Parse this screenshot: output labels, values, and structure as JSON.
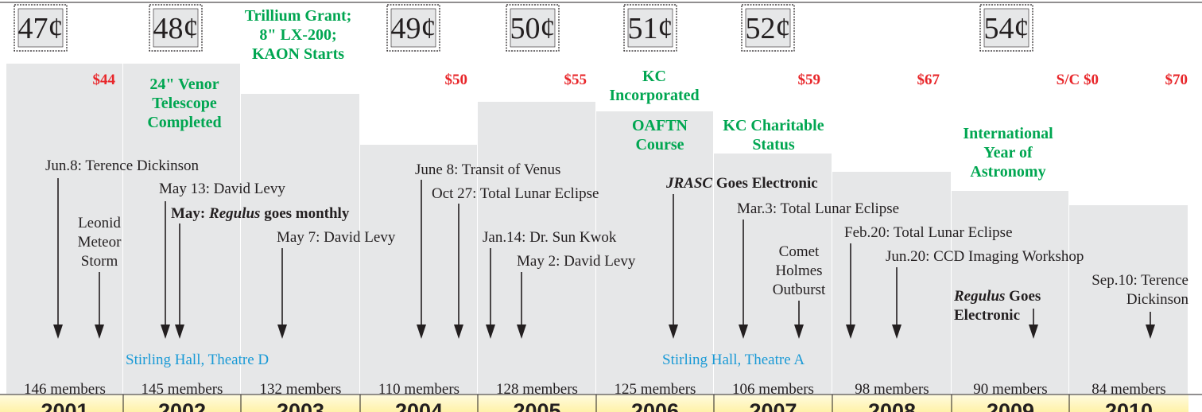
{
  "stamps": [
    "47¢",
    "48¢",
    "49¢",
    "50¢",
    "51¢",
    "52¢",
    "54¢"
  ],
  "prices": [
    "$44",
    "$50",
    "$55",
    "$59",
    "$67",
    "S/C $0",
    "$70"
  ],
  "milestones": [
    [
      "Trillium Grant;",
      "8\" LX-200;",
      "KAON Starts"
    ],
    [
      "24\" Venor",
      "Telescope",
      "Completed"
    ],
    [
      "KC",
      "Incorporated"
    ],
    [
      "OAFTN",
      "Course"
    ],
    [
      "KC Charitable",
      "Status"
    ],
    [
      "International",
      "Year of",
      "Astronomy"
    ]
  ],
  "events": [
    {
      "lines": [
        [
          "Jun.8: Terence Dickinson"
        ]
      ]
    },
    {
      "lines": [
        [
          "Leonid"
        ],
        [
          "Meteor"
        ],
        [
          "Storm"
        ]
      ]
    },
    {
      "lines": [
        [
          "May 13: David Levy"
        ]
      ]
    },
    {
      "lines": [
        [
          "May: ",
          "Regulus",
          " goes monthly"
        ]
      ]
    },
    {
      "lines": [
        [
          "May 7: David Levy"
        ]
      ]
    },
    {
      "lines": [
        [
          "June 8: Transit of Venus"
        ]
      ]
    },
    {
      "lines": [
        [
          "Oct 27: Total Lunar Eclipse"
        ]
      ]
    },
    {
      "lines": [
        [
          "Jan.14: Dr. Sun Kwok"
        ]
      ]
    },
    {
      "lines": [
        [
          "May 2: David Levy"
        ]
      ]
    },
    {
      "lines": [
        [
          "JRASC",
          " Goes Electronic"
        ]
      ]
    },
    {
      "lines": [
        [
          "Mar.3: Total Lunar Eclipse"
        ]
      ]
    },
    {
      "lines": [
        [
          "Comet"
        ],
        [
          "Holmes"
        ],
        [
          "Outburst"
        ]
      ]
    },
    {
      "lines": [
        [
          "Feb.20: Total Lunar Eclipse"
        ]
      ]
    },
    {
      "lines": [
        [
          "Jun.20: CCD Imaging Workshop"
        ]
      ]
    },
    {
      "lines": [
        [
          "Regulus",
          " Goes"
        ],
        [
          "Electronic"
        ]
      ]
    },
    {
      "lines": [
        [
          "Sep.10: Terence"
        ],
        [
          "Dickinson"
        ]
      ]
    }
  ],
  "venues": [
    "Stirling Hall, Theatre D",
    "Stirling Hall, Theatre A"
  ],
  "years": [
    {
      "year": "2001",
      "members": "146 members"
    },
    {
      "year": "2002",
      "members": "145 members"
    },
    {
      "year": "2003",
      "members": "132 members"
    },
    {
      "year": "2004",
      "members": "110 members"
    },
    {
      "year": "2005",
      "members": "128 members"
    },
    {
      "year": "2006",
      "members": "125 members"
    },
    {
      "year": "2007",
      "members": "106 members"
    },
    {
      "year": "2008",
      "members": "98 members"
    },
    {
      "year": "2009",
      "members": "90 members"
    },
    {
      "year": "2010",
      "members": "84 members"
    }
  ]
}
